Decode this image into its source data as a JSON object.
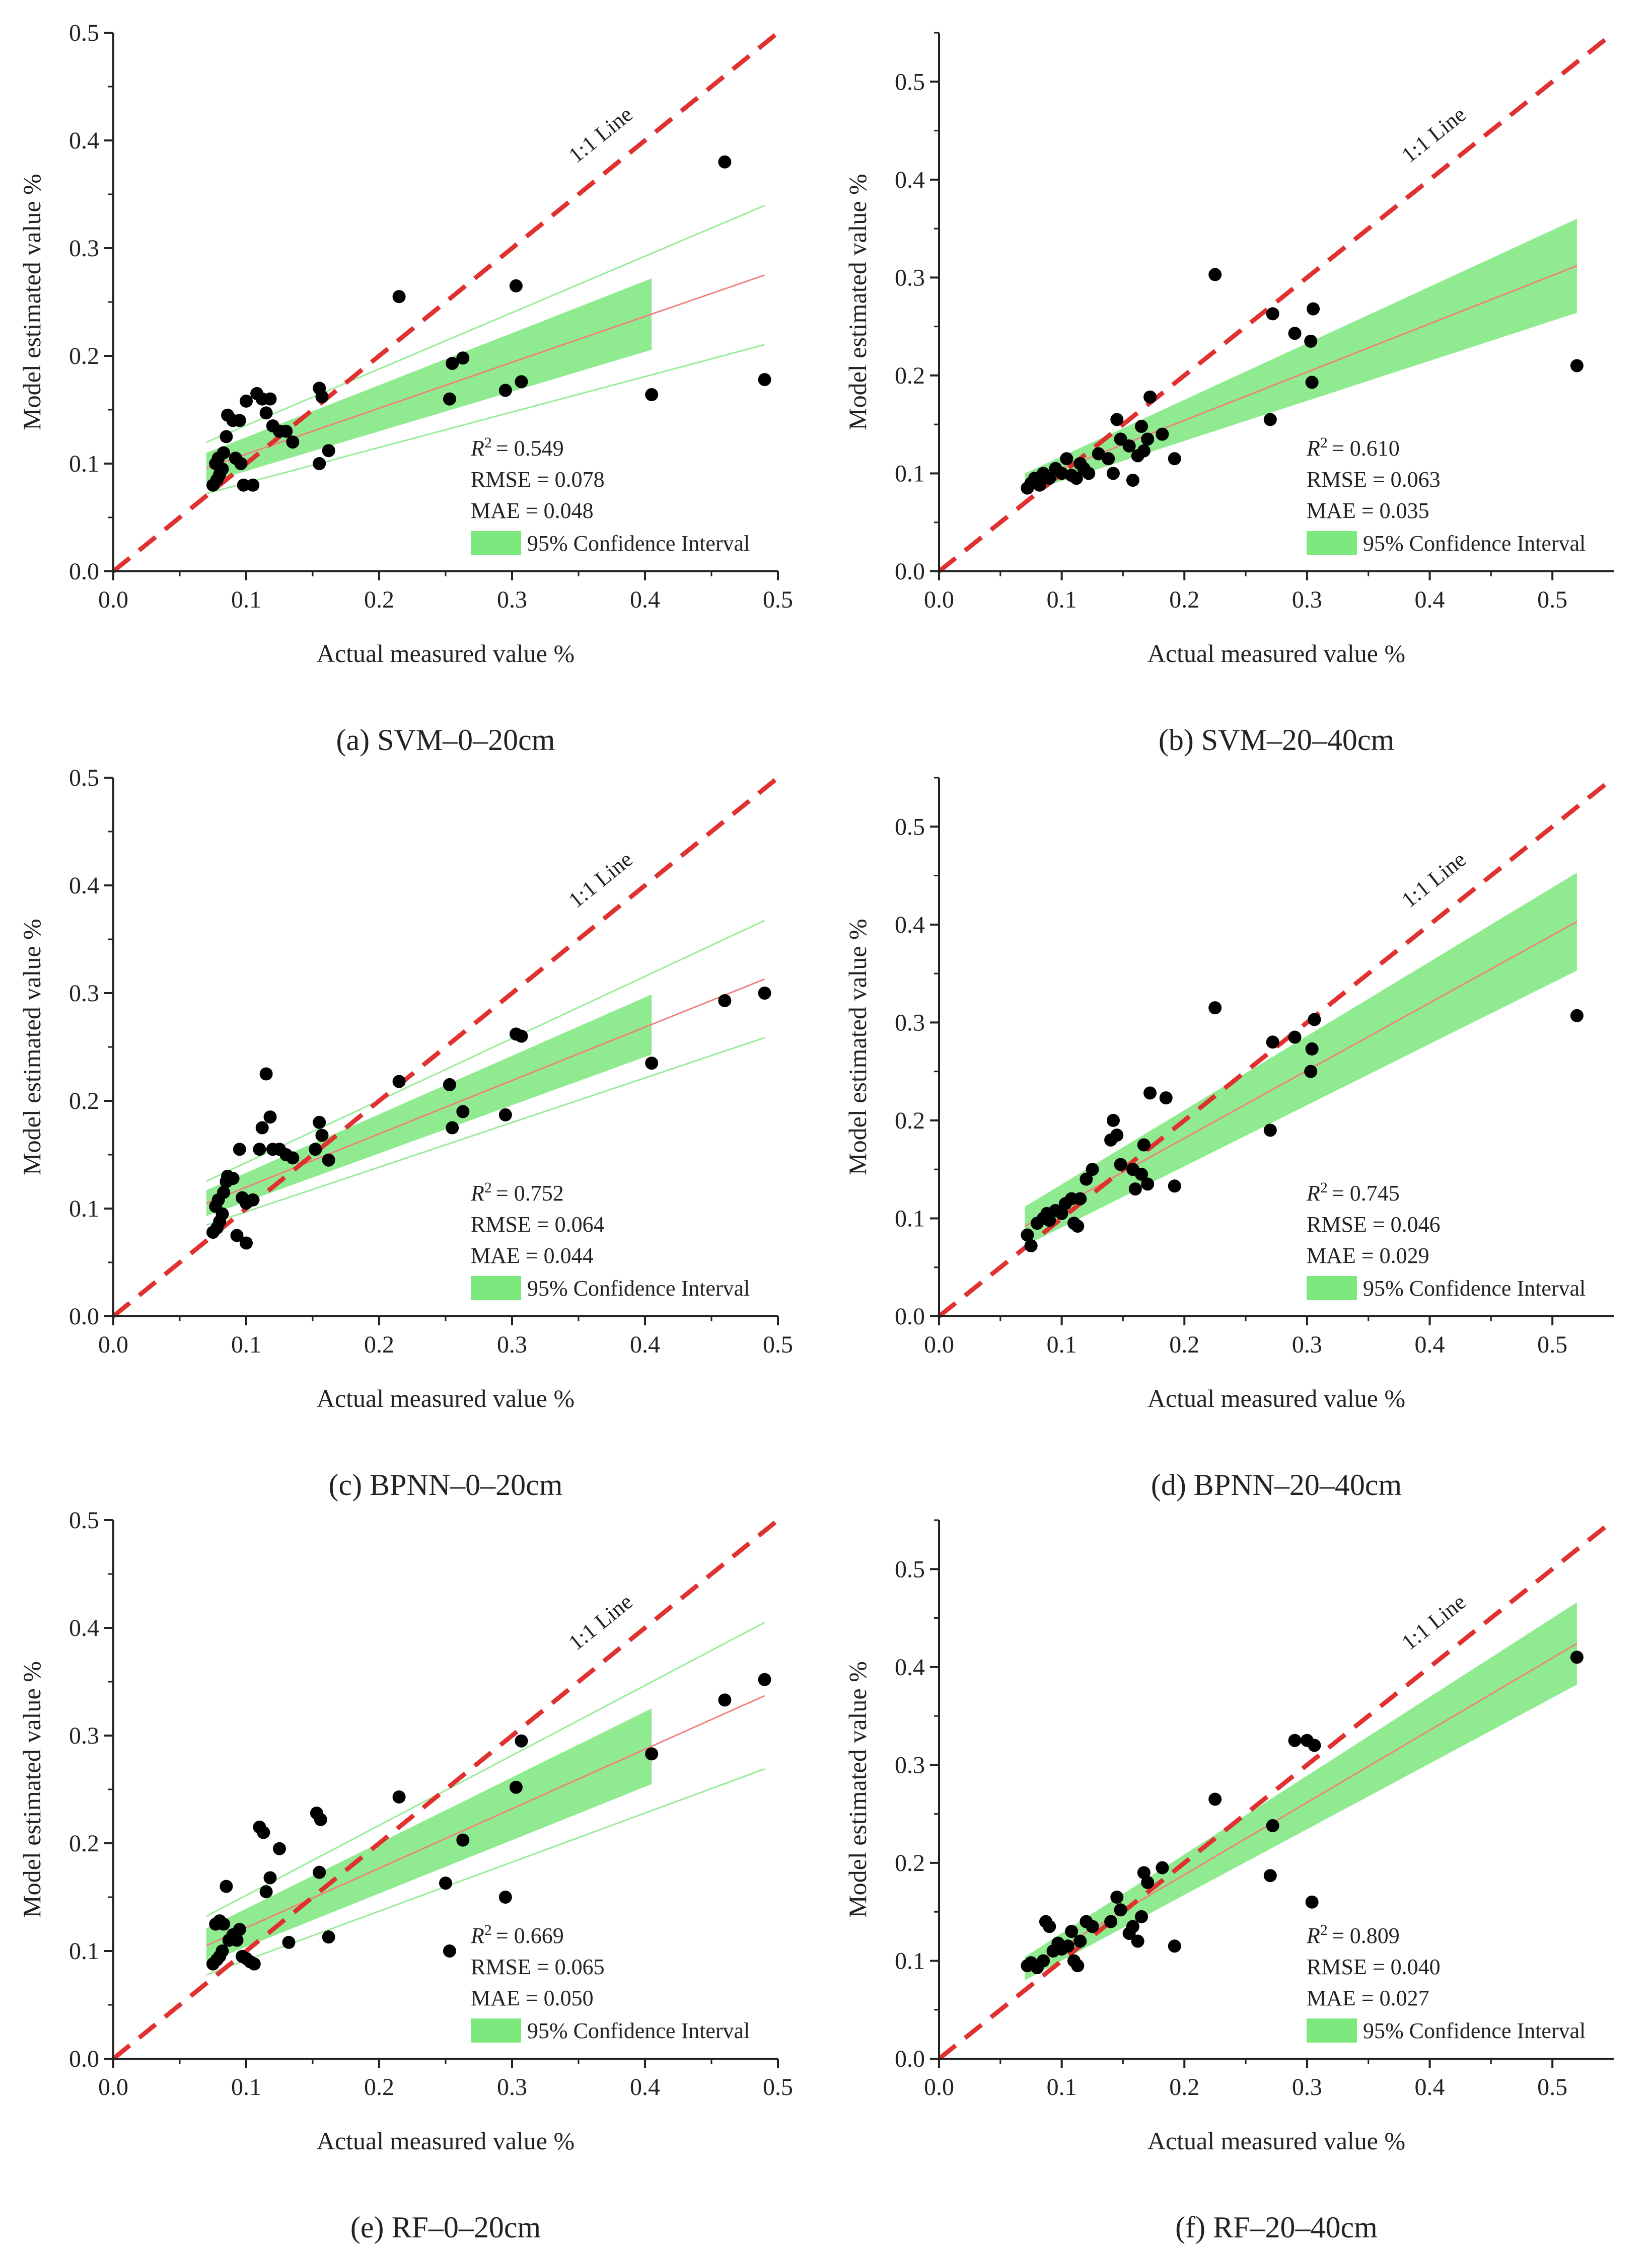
{
  "figure": {
    "axis_xlabel": "Actual measured value %",
    "axis_ylabel": "Model estimated value %",
    "one_to_one_label": "1:1 Line",
    "legend_label": "95% Confidence Interval",
    "colors": {
      "points": "#000000",
      "one_to_one": "#e03030",
      "fit": "#f08080",
      "band": "#7de87d",
      "axis": "#222222"
    }
  },
  "chart_data": [
    {
      "id": "a",
      "type": "scatter",
      "caption": "(a) SVM–0–20cm",
      "xlim": [
        0,
        0.5
      ],
      "ylim": [
        0,
        0.5
      ],
      "xticks": [
        "0.0",
        "0.1",
        "0.2",
        "0.3",
        "0.4",
        "0.5"
      ],
      "yticks": [
        "0.0",
        "0.1",
        "0.2",
        "0.3",
        "0.4",
        "0.5"
      ],
      "stats": {
        "r2": "= 0.549",
        "rmse": "RMSE = 0.078",
        "mae": "MAE = 0.048"
      },
      "fit": {
        "x0": 0.07,
        "x1": 0.49,
        "y0": 0.096,
        "y1": 0.275,
        "band_end": 0.405,
        "hw0": 0.014,
        "hw1": 0.038
      },
      "points": [
        [
          0.075,
          0.08
        ],
        [
          0.078,
          0.085
        ],
        [
          0.08,
          0.09
        ],
        [
          0.082,
          0.095
        ],
        [
          0.077,
          0.1
        ],
        [
          0.079,
          0.105
        ],
        [
          0.083,
          0.11
        ],
        [
          0.085,
          0.125
        ],
        [
          0.086,
          0.145
        ],
        [
          0.09,
          0.14
        ],
        [
          0.095,
          0.14
        ],
        [
          0.092,
          0.105
        ],
        [
          0.096,
          0.1
        ],
        [
          0.1,
          0.158
        ],
        [
          0.098,
          0.08
        ],
        [
          0.105,
          0.08
        ],
        [
          0.108,
          0.165
        ],
        [
          0.112,
          0.16
        ],
        [
          0.115,
          0.147
        ],
        [
          0.118,
          0.16
        ],
        [
          0.12,
          0.135
        ],
        [
          0.125,
          0.13
        ],
        [
          0.13,
          0.13
        ],
        [
          0.135,
          0.12
        ],
        [
          0.155,
          0.17
        ],
        [
          0.157,
          0.162
        ],
        [
          0.155,
          0.1
        ],
        [
          0.162,
          0.112
        ],
        [
          0.215,
          0.255
        ],
        [
          0.253,
          0.16
        ],
        [
          0.255,
          0.193
        ],
        [
          0.263,
          0.198
        ],
        [
          0.295,
          0.168
        ],
        [
          0.303,
          0.265
        ],
        [
          0.307,
          0.176
        ],
        [
          0.405,
          0.164
        ],
        [
          0.46,
          0.38
        ],
        [
          0.49,
          0.178
        ]
      ]
    },
    {
      "id": "b",
      "type": "scatter",
      "caption": "(b) SVM–20–40cm",
      "xlim": [
        0,
        0.55
      ],
      "ylim": [
        0,
        0.55
      ],
      "xticks": [
        "0.0",
        "0.1",
        "0.2",
        "0.3",
        "0.4",
        "0.5"
      ],
      "yticks": [
        "0.0",
        "0.1",
        "0.2",
        "0.3",
        "0.4",
        "0.5"
      ],
      "stats": {
        "r2": "= 0.610",
        "rmse": "RMSE = 0.063",
        "mae": "MAE = 0.035"
      },
      "fit": {
        "x0": 0.07,
        "x1": 0.52,
        "y0": 0.09,
        "y1": 0.312,
        "band_end": 0.52,
        "hw0": 0.01,
        "hw1": 0.048
      },
      "points": [
        [
          0.072,
          0.085
        ],
        [
          0.075,
          0.09
        ],
        [
          0.078,
          0.095
        ],
        [
          0.082,
          0.088
        ],
        [
          0.085,
          0.1
        ],
        [
          0.09,
          0.095
        ],
        [
          0.095,
          0.105
        ],
        [
          0.1,
          0.1
        ],
        [
          0.104,
          0.115
        ],
        [
          0.108,
          0.098
        ],
        [
          0.112,
          0.095
        ],
        [
          0.115,
          0.11
        ],
        [
          0.118,
          0.105
        ],
        [
          0.122,
          0.1
        ],
        [
          0.13,
          0.12
        ],
        [
          0.138,
          0.115
        ],
        [
          0.142,
          0.1
        ],
        [
          0.145,
          0.155
        ],
        [
          0.148,
          0.135
        ],
        [
          0.155,
          0.128
        ],
        [
          0.158,
          0.093
        ],
        [
          0.162,
          0.118
        ],
        [
          0.165,
          0.148
        ],
        [
          0.167,
          0.123
        ],
        [
          0.17,
          0.135
        ],
        [
          0.172,
          0.178
        ],
        [
          0.182,
          0.14
        ],
        [
          0.192,
          0.115
        ],
        [
          0.225,
          0.303
        ],
        [
          0.27,
          0.155
        ],
        [
          0.272,
          0.263
        ],
        [
          0.29,
          0.243
        ],
        [
          0.303,
          0.235
        ],
        [
          0.304,
          0.193
        ],
        [
          0.305,
          0.268
        ],
        [
          0.52,
          0.21
        ]
      ]
    },
    {
      "id": "c",
      "type": "scatter",
      "caption": "(c) BPNN–0–20cm",
      "xlim": [
        0,
        0.5
      ],
      "ylim": [
        0,
        0.5
      ],
      "xticks": [
        "0.0",
        "0.1",
        "0.2",
        "0.3",
        "0.4",
        "0.5"
      ],
      "yticks": [
        "0.0",
        "0.1",
        "0.2",
        "0.3",
        "0.4",
        "0.5"
      ],
      "stats": {
        "r2": "= 0.752",
        "rmse": "RMSE = 0.064",
        "mae": "MAE = 0.044"
      },
      "fit": {
        "x0": 0.07,
        "x1": 0.49,
        "y0": 0.105,
        "y1": 0.313,
        "band_end": 0.405,
        "hw0": 0.012,
        "hw1": 0.032
      },
      "points": [
        [
          0.075,
          0.078
        ],
        [
          0.078,
          0.082
        ],
        [
          0.08,
          0.088
        ],
        [
          0.082,
          0.095
        ],
        [
          0.077,
          0.102
        ],
        [
          0.079,
          0.108
        ],
        [
          0.083,
          0.115
        ],
        [
          0.085,
          0.125
        ],
        [
          0.086,
          0.13
        ],
        [
          0.09,
          0.128
        ],
        [
          0.093,
          0.075
        ],
        [
          0.095,
          0.155
        ],
        [
          0.097,
          0.11
        ],
        [
          0.1,
          0.105
        ],
        [
          0.1,
          0.068
        ],
        [
          0.105,
          0.108
        ],
        [
          0.11,
          0.155
        ],
        [
          0.112,
          0.175
        ],
        [
          0.115,
          0.225
        ],
        [
          0.118,
          0.185
        ],
        [
          0.12,
          0.155
        ],
        [
          0.125,
          0.155
        ],
        [
          0.13,
          0.15
        ],
        [
          0.135,
          0.147
        ],
        [
          0.155,
          0.18
        ],
        [
          0.157,
          0.168
        ],
        [
          0.152,
          0.155
        ],
        [
          0.162,
          0.145
        ],
        [
          0.215,
          0.218
        ],
        [
          0.253,
          0.215
        ],
        [
          0.255,
          0.175
        ],
        [
          0.263,
          0.19
        ],
        [
          0.295,
          0.187
        ],
        [
          0.303,
          0.262
        ],
        [
          0.307,
          0.26
        ],
        [
          0.405,
          0.235
        ],
        [
          0.46,
          0.293
        ],
        [
          0.49,
          0.3
        ]
      ]
    },
    {
      "id": "d",
      "type": "scatter",
      "caption": "(d) BPNN–20–40cm",
      "xlim": [
        0,
        0.55
      ],
      "ylim": [
        0,
        0.55
      ],
      "xticks": [
        "0.0",
        "0.1",
        "0.2",
        "0.3",
        "0.4",
        "0.5"
      ],
      "yticks": [
        "0.0",
        "0.1",
        "0.2",
        "0.3",
        "0.4",
        "0.5"
      ],
      "stats": {
        "r2": "= 0.745",
        "rmse": "RMSE = 0.046",
        "mae": "MAE = 0.029"
      },
      "fit": {
        "x0": 0.07,
        "x1": 0.52,
        "y0": 0.092,
        "y1": 0.403,
        "band_end": 0.52,
        "hw0": 0.02,
        "hw1": 0.05
      },
      "points": [
        [
          0.072,
          0.083
        ],
        [
          0.075,
          0.072
        ],
        [
          0.08,
          0.095
        ],
        [
          0.085,
          0.1
        ],
        [
          0.088,
          0.105
        ],
        [
          0.09,
          0.098
        ],
        [
          0.095,
          0.108
        ],
        [
          0.1,
          0.105
        ],
        [
          0.103,
          0.115
        ],
        [
          0.108,
          0.12
        ],
        [
          0.11,
          0.095
        ],
        [
          0.113,
          0.092
        ],
        [
          0.115,
          0.12
        ],
        [
          0.12,
          0.14
        ],
        [
          0.125,
          0.15
        ],
        [
          0.14,
          0.18
        ],
        [
          0.142,
          0.2
        ],
        [
          0.145,
          0.185
        ],
        [
          0.148,
          0.155
        ],
        [
          0.158,
          0.15
        ],
        [
          0.16,
          0.13
        ],
        [
          0.165,
          0.145
        ],
        [
          0.167,
          0.175
        ],
        [
          0.17,
          0.135
        ],
        [
          0.172,
          0.228
        ],
        [
          0.185,
          0.223
        ],
        [
          0.192,
          0.133
        ],
        [
          0.225,
          0.315
        ],
        [
          0.27,
          0.19
        ],
        [
          0.272,
          0.28
        ],
        [
          0.29,
          0.285
        ],
        [
          0.303,
          0.25
        ],
        [
          0.304,
          0.273
        ],
        [
          0.306,
          0.303
        ],
        [
          0.52,
          0.307
        ]
      ]
    },
    {
      "id": "e",
      "type": "scatter",
      "caption": "(e) RF–0–20cm",
      "xlim": [
        0,
        0.5
      ],
      "ylim": [
        0,
        0.5
      ],
      "xticks": [
        "0.0",
        "0.1",
        "0.2",
        "0.3",
        "0.4",
        "0.5"
      ],
      "yticks": [
        "0.0",
        "0.1",
        "0.2",
        "0.3",
        "0.4",
        "0.5"
      ],
      "stats": {
        "r2": "= 0.669",
        "rmse": "RMSE = 0.065",
        "mae": "MAE = 0.050"
      },
      "fit": {
        "x0": 0.07,
        "x1": 0.49,
        "y0": 0.105,
        "y1": 0.337,
        "band_end": 0.405,
        "hw0": 0.016,
        "hw1": 0.04
      },
      "points": [
        [
          0.075,
          0.088
        ],
        [
          0.078,
          0.092
        ],
        [
          0.08,
          0.095
        ],
        [
          0.082,
          0.1
        ],
        [
          0.077,
          0.125
        ],
        [
          0.08,
          0.128
        ],
        [
          0.083,
          0.125
        ],
        [
          0.085,
          0.16
        ],
        [
          0.087,
          0.11
        ],
        [
          0.09,
          0.115
        ],
        [
          0.093,
          0.11
        ],
        [
          0.095,
          0.12
        ],
        [
          0.097,
          0.095
        ],
        [
          0.1,
          0.093
        ],
        [
          0.103,
          0.09
        ],
        [
          0.106,
          0.088
        ],
        [
          0.11,
          0.215
        ],
        [
          0.113,
          0.21
        ],
        [
          0.115,
          0.155
        ],
        [
          0.118,
          0.168
        ],
        [
          0.125,
          0.195
        ],
        [
          0.132,
          0.108
        ],
        [
          0.153,
          0.228
        ],
        [
          0.156,
          0.222
        ],
        [
          0.155,
          0.173
        ],
        [
          0.162,
          0.113
        ],
        [
          0.215,
          0.243
        ],
        [
          0.25,
          0.163
        ],
        [
          0.253,
          0.1
        ],
        [
          0.263,
          0.203
        ],
        [
          0.295,
          0.15
        ],
        [
          0.303,
          0.252
        ],
        [
          0.307,
          0.295
        ],
        [
          0.405,
          0.283
        ],
        [
          0.46,
          0.333
        ],
        [
          0.49,
          0.352
        ]
      ]
    },
    {
      "id": "f",
      "type": "scatter",
      "caption": "(f) RF–20–40cm",
      "xlim": [
        0,
        0.55
      ],
      "ylim": [
        0,
        0.55
      ],
      "xticks": [
        "0.0",
        "0.1",
        "0.2",
        "0.3",
        "0.4",
        "0.5"
      ],
      "yticks": [
        "0.0",
        "0.1",
        "0.2",
        "0.3",
        "0.4",
        "0.5"
      ],
      "stats": {
        "r2": "= 0.809",
        "rmse": "RMSE = 0.040",
        "mae": "MAE = 0.027"
      },
      "fit": {
        "x0": 0.07,
        "x1": 0.52,
        "y0": 0.092,
        "y1": 0.424,
        "band_end": 0.52,
        "hw0": 0.012,
        "hw1": 0.042
      },
      "points": [
        [
          0.072,
          0.095
        ],
        [
          0.075,
          0.098
        ],
        [
          0.08,
          0.093
        ],
        [
          0.085,
          0.1
        ],
        [
          0.087,
          0.14
        ],
        [
          0.09,
          0.135
        ],
        [
          0.093,
          0.11
        ],
        [
          0.097,
          0.118
        ],
        [
          0.1,
          0.112
        ],
        [
          0.105,
          0.115
        ],
        [
          0.108,
          0.13
        ],
        [
          0.11,
          0.1
        ],
        [
          0.113,
          0.095
        ],
        [
          0.115,
          0.12
        ],
        [
          0.12,
          0.14
        ],
        [
          0.125,
          0.135
        ],
        [
          0.14,
          0.14
        ],
        [
          0.145,
          0.165
        ],
        [
          0.148,
          0.152
        ],
        [
          0.155,
          0.128
        ],
        [
          0.158,
          0.135
        ],
        [
          0.162,
          0.12
        ],
        [
          0.165,
          0.145
        ],
        [
          0.167,
          0.19
        ],
        [
          0.17,
          0.18
        ],
        [
          0.182,
          0.195
        ],
        [
          0.192,
          0.115
        ],
        [
          0.225,
          0.265
        ],
        [
          0.27,
          0.187
        ],
        [
          0.272,
          0.238
        ],
        [
          0.29,
          0.325
        ],
        [
          0.3,
          0.325
        ],
        [
          0.304,
          0.16
        ],
        [
          0.306,
          0.32
        ],
        [
          0.52,
          0.41
        ]
      ]
    }
  ]
}
